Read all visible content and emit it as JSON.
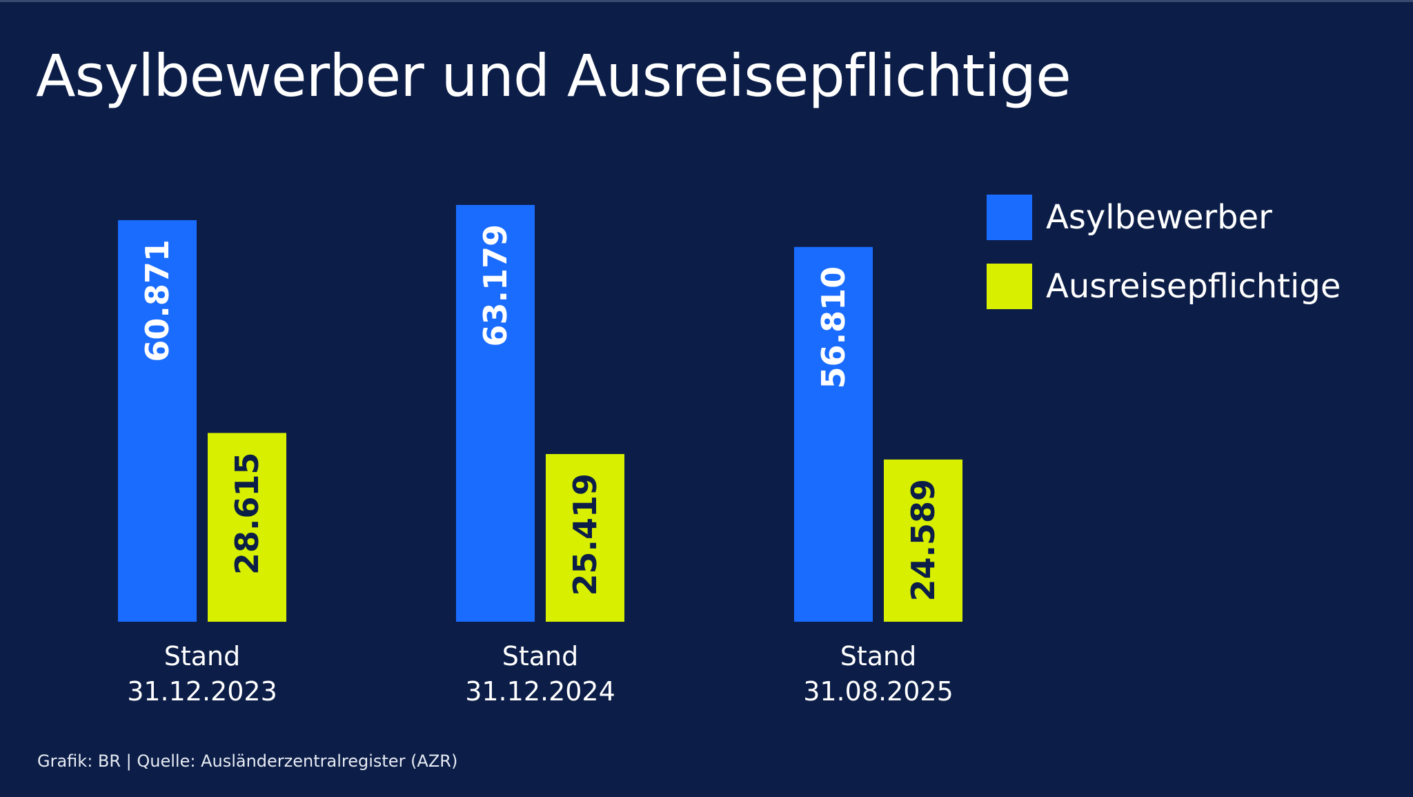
{
  "title": "Asylbewerber und Ausreisepflichtige",
  "footer": "Grafik: BR | Quelle: Ausländerzentralregister (AZR)",
  "colors": {
    "background": "#0c1e48",
    "asyl": "#1a6cff",
    "ausreise": "#d8f000",
    "text": "#ffffff",
    "label_on_asyl": "#ffffff",
    "label_on_ausreise": "#0c1e48"
  },
  "legend": [
    {
      "label": "Asylbewerber",
      "color": "#1a6cff"
    },
    {
      "label": "Ausreisepflichtige",
      "color": "#d8f000"
    }
  ],
  "chart_data": {
    "type": "bar",
    "title": "Asylbewerber und Ausreisepflichtige",
    "categories": [
      {
        "line1": "Stand",
        "line2": "31.12.2023"
      },
      {
        "line1": "Stand",
        "line2": "31.12.2024"
      },
      {
        "line1": "Stand",
        "line2": "31.08.2025"
      }
    ],
    "series": [
      {
        "name": "Asylbewerber",
        "values": [
          60871,
          63179,
          56810
        ],
        "labels": [
          "60.871",
          "63.179",
          "56.810"
        ]
      },
      {
        "name": "Ausreisepflichtige",
        "values": [
          28615,
          25419,
          24589
        ],
        "labels": [
          "28.615",
          "25.419",
          "24.589"
        ]
      }
    ],
    "xlabel": "",
    "ylabel": "",
    "ylim": [
      0,
      63179
    ],
    "grid": false,
    "legend_position": "top-right"
  }
}
